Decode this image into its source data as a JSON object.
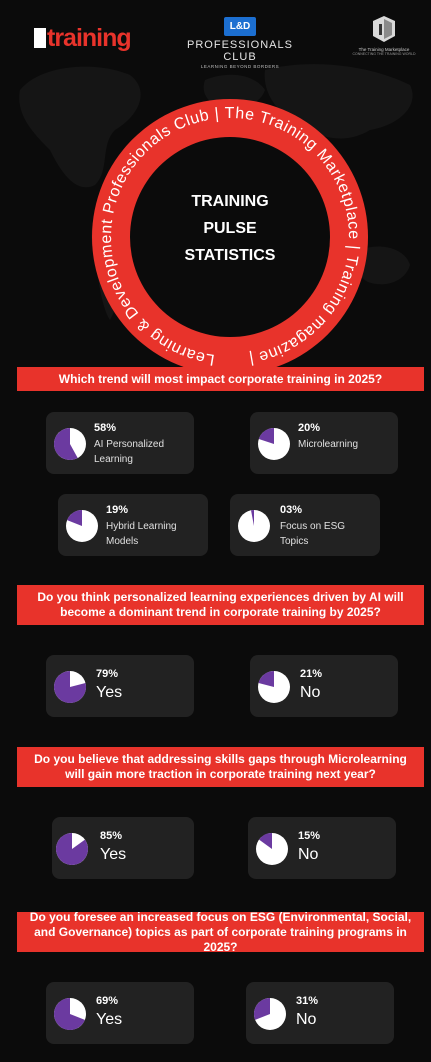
{
  "header": {
    "training_logo": "training",
    "lnd_badge": "L&D",
    "lnd_title": "PROFESSIONALS CLUB",
    "lnd_subtitle": "LEARNING BEYOND BORDERS",
    "tm_name": "The Training Marketplace",
    "tm_subtitle": "CONNECTING THE TRAINING WORLD"
  },
  "ring": {
    "curved_text": "Learning & Development Professionals Club | The Training Marketplace | Training magazine | ",
    "center_lines": [
      "TRAINING",
      "PULSE",
      "STATISTICS"
    ]
  },
  "colors": {
    "accent": "#e8332b",
    "pie_fill": "#6b3aa0",
    "card_bg": "#222222",
    "pie_rest": "#ffffff"
  },
  "questions": [
    {
      "title": "Which trend will most impact corporate training in 2025?",
      "options": [
        {
          "percent": "58%",
          "value": 58,
          "label": "AI Personalized Learning"
        },
        {
          "percent": "20%",
          "value": 20,
          "label": "Microlearning"
        },
        {
          "percent": "19%",
          "value": 19,
          "label": "Hybrid Learning Models"
        },
        {
          "percent": "03%",
          "value": 3,
          "label": "Focus on ESG Topics"
        }
      ]
    },
    {
      "title": "Do you think personalized learning experiences driven by AI will become a dominant trend in corporate training by 2025?",
      "options": [
        {
          "percent": "79%",
          "value": 79,
          "label": "Yes"
        },
        {
          "percent": "21%",
          "value": 21,
          "label": "No"
        }
      ]
    },
    {
      "title": "Do you believe that addressing skills gaps through Microlearning will gain more traction in corporate training next year?",
      "options": [
        {
          "percent": "85%",
          "value": 85,
          "label": "Yes"
        },
        {
          "percent": "15%",
          "value": 15,
          "label": "No"
        }
      ]
    },
    {
      "title": "Do you foresee an increased focus on ESG (Environmental, Social, and Governance) topics as part of corporate training programs in 2025?",
      "options": [
        {
          "percent": "69%",
          "value": 69,
          "label": "Yes"
        },
        {
          "percent": "31%",
          "value": 31,
          "label": "No"
        }
      ]
    }
  ]
}
